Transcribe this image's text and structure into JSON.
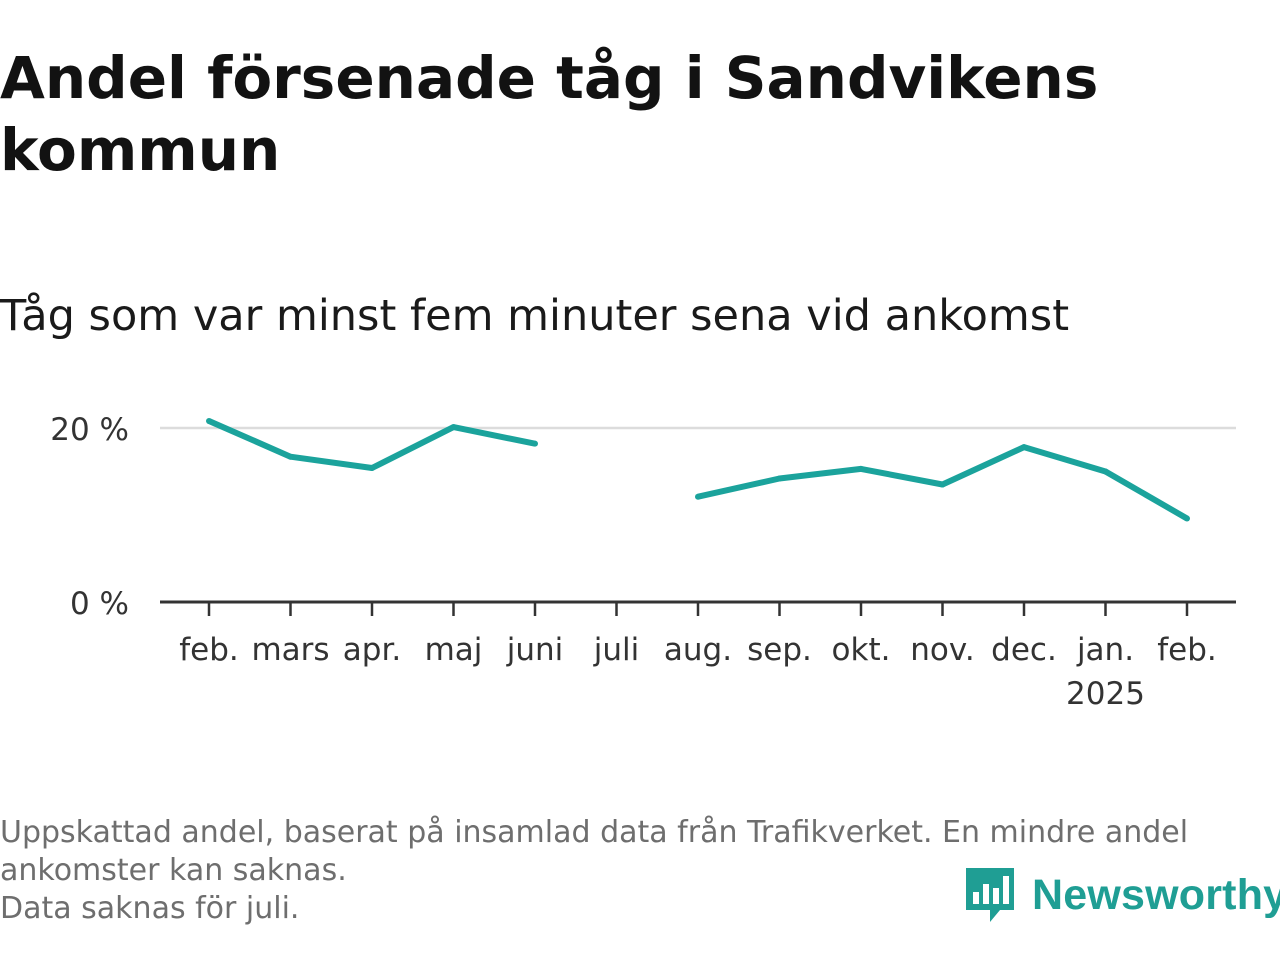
{
  "title": "Andel försenade tåg i Sandvikens kommun",
  "subtitle": "Tåg som var minst fem minuter sena vid ankomst",
  "chart_data": {
    "type": "line",
    "categories": [
      "feb.",
      "mars",
      "apr.",
      "maj",
      "juni",
      "juli",
      "aug.",
      "sep.",
      "okt.",
      "nov.",
      "dec.",
      "jan.",
      "feb."
    ],
    "year_label": "2025",
    "series": [
      {
        "values": [
          20.8,
          16.7,
          15.4,
          20.1,
          18.2,
          null,
          12.1,
          14.2,
          15.3,
          13.5,
          17.8,
          15.0,
          9.6
        ]
      }
    ],
    "ylim": [
      0,
      20
    ],
    "yticks": [
      {
        "value": 0,
        "label": "0 %"
      },
      {
        "value": 20,
        "label": "20 %"
      }
    ],
    "xlabel": "",
    "ylabel": "",
    "grid": true,
    "line_color": "#1ba39c"
  },
  "footer": {
    "note_line1": "Uppskattad andel, baserat på insamlad data från Trafikverket. En mindre andel",
    "note_line2": "ankomster kan saknas.",
    "note_line3": "Data saknas för juli."
  },
  "logo": {
    "text": "Newsworthy",
    "color": "#1f9e94",
    "icon": "newsworthy-logo-icon"
  }
}
